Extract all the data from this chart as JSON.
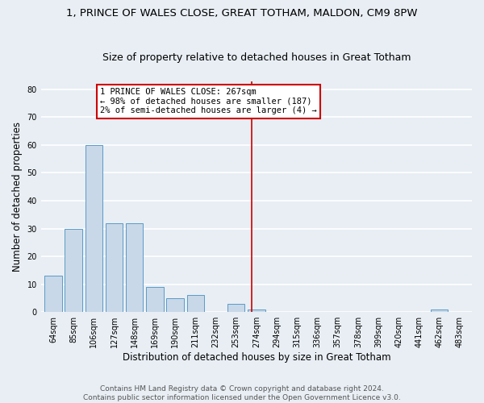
{
  "title": "1, PRINCE OF WALES CLOSE, GREAT TOTHAM, MALDON, CM9 8PW",
  "subtitle": "Size of property relative to detached houses in Great Totham",
  "xlabel": "Distribution of detached houses by size in Great Totham",
  "ylabel": "Number of detached properties",
  "bin_labels": [
    "64sqm",
    "85sqm",
    "106sqm",
    "127sqm",
    "148sqm",
    "169sqm",
    "190sqm",
    "211sqm",
    "232sqm",
    "253sqm",
    "274sqm",
    "294sqm",
    "315sqm",
    "336sqm",
    "357sqm",
    "378sqm",
    "399sqm",
    "420sqm",
    "441sqm",
    "462sqm",
    "483sqm"
  ],
  "bar_values": [
    13,
    30,
    60,
    32,
    32,
    9,
    5,
    6,
    0,
    3,
    1,
    0,
    0,
    0,
    0,
    0,
    0,
    0,
    0,
    1,
    0
  ],
  "bar_color": "#c8d8e8",
  "bar_edge_color": "#5a9ac8",
  "vline_x_idx": 10,
  "vline_color": "#cc0000",
  "annotation_line1": "1 PRINCE OF WALES CLOSE: 267sqm",
  "annotation_line2": "← 98% of detached houses are smaller (187)",
  "annotation_line3": "2% of semi-detached houses are larger (4) →",
  "annotation_box_color": "#ffffff",
  "annotation_box_edge": "#cc0000",
  "ylim": [
    0,
    83
  ],
  "yticks": [
    0,
    10,
    20,
    30,
    40,
    50,
    60,
    70,
    80
  ],
  "footer": "Contains HM Land Registry data © Crown copyright and database right 2024.\nContains public sector information licensed under the Open Government Licence v3.0.",
  "bg_color": "#e8eef4",
  "grid_color": "#ffffff",
  "title_fontsize": 9.5,
  "subtitle_fontsize": 9,
  "label_fontsize": 8.5,
  "tick_fontsize": 7,
  "annotation_fontsize": 7.5,
  "footer_fontsize": 6.5
}
